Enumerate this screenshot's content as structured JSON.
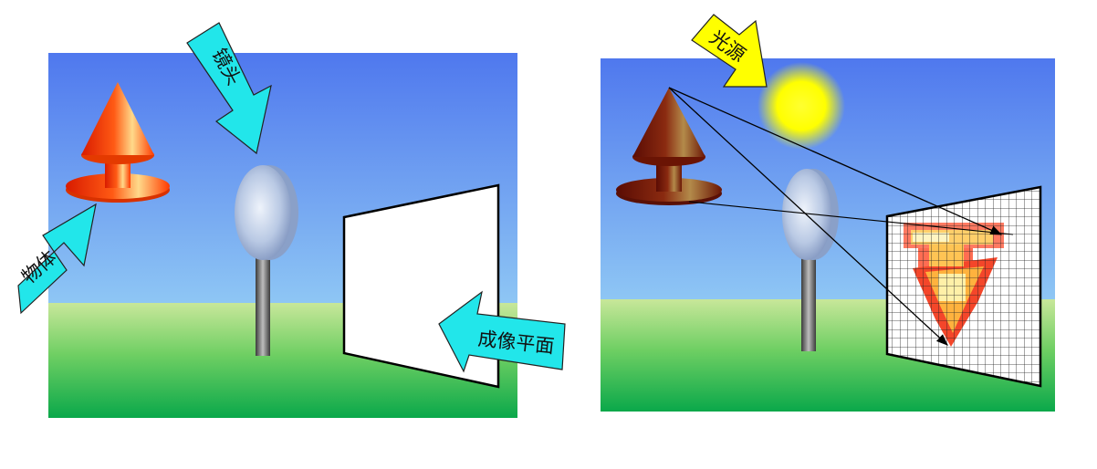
{
  "left_panel": {
    "labels": {
      "object": "物体",
      "lens": "镜头",
      "image_plane": "成像平面"
    }
  },
  "right_panel": {
    "labels": {
      "light_source": "光源"
    }
  },
  "colors": {
    "arrow_fill": "#22e6ea",
    "light_label_fill": "#ffff00",
    "sky_top": "#4f78ee",
    "sky_bottom": "#8ec6f4",
    "grass_top": "#c8e79a",
    "grass_bottom": "#0aa84a"
  }
}
